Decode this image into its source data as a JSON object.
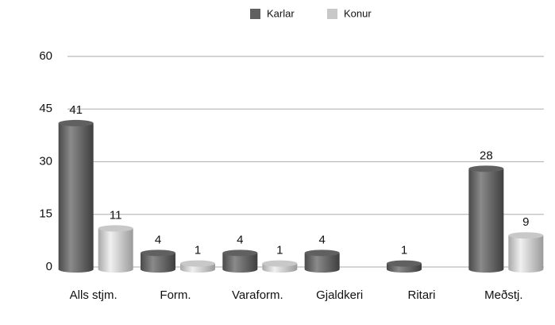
{
  "chart_data": {
    "type": "bar",
    "categories": [
      "Alls stjm.",
      "Form.",
      "Varaform.",
      "Gjaldkeri",
      "Ritari",
      "Meðstj."
    ],
    "series": [
      {
        "name": "Karlar",
        "color": "#606060",
        "values": [
          41,
          4,
          4,
          4,
          1,
          28
        ]
      },
      {
        "name": "Konur",
        "color": "#c8c8c8",
        "values": [
          11,
          1,
          1,
          null,
          null,
          9
        ]
      }
    ],
    "ylim": [
      0,
      60
    ],
    "yticks": [
      0,
      15,
      30,
      45,
      60
    ],
    "grid": true,
    "legend": "top"
  }
}
